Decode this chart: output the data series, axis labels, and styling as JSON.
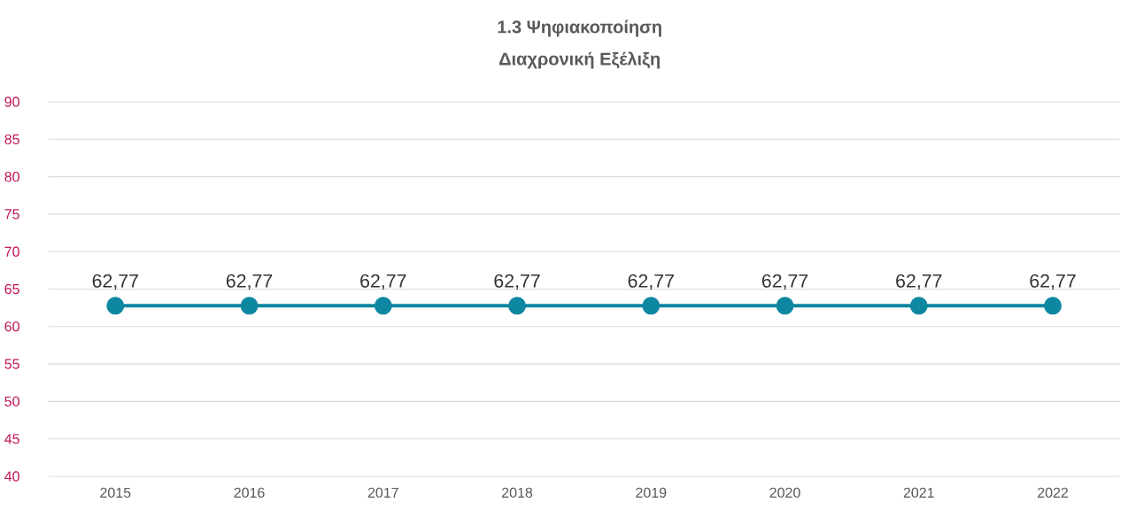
{
  "chart_data": {
    "type": "line",
    "title": "1.3 Ψηφιακοποίηση",
    "subtitle": "Διαχρονική Εξέλιξη",
    "categories": [
      "2015",
      "2016",
      "2017",
      "2018",
      "2019",
      "2020",
      "2021",
      "2022"
    ],
    "series": [
      {
        "color": "#0e87a0",
        "values": [
          62.77,
          62.77,
          62.77,
          62.77,
          62.77,
          62.77,
          62.77,
          62.77
        ],
        "value_labels": [
          "62,77",
          "62,77",
          "62,77",
          "62,77",
          "62,77",
          "62,77",
          "62,77",
          "62,77"
        ]
      }
    ],
    "ylim": [
      40,
      90
    ],
    "yticks": [
      40,
      45,
      50,
      55,
      60,
      65,
      70,
      75,
      80,
      85,
      90
    ],
    "grid": "y",
    "marker": "circle",
    "line_style": "solid"
  }
}
